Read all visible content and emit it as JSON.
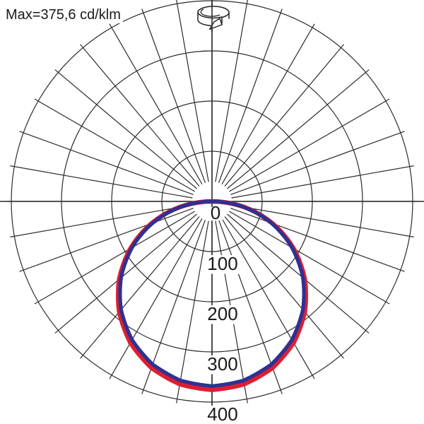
{
  "header": {
    "max_label": "Max=375,6 cd/klm"
  },
  "chart_data": {
    "type": "polar",
    "subtype": "luminous-intensity-distribution",
    "title": "Max=375,6 cd/klm",
    "unit": "cd/klm",
    "max_value": 375.6,
    "radial_axis": {
      "tick_labels": [
        "0",
        "100",
        "200",
        "300",
        "400"
      ],
      "tick_values": [
        0,
        100,
        200,
        300,
        400
      ],
      "range": [
        0,
        400
      ],
      "direction": "downward"
    },
    "angular_grid": {
      "step_deg": 10,
      "full_circle": true
    },
    "grid_color": "#2b2b2b",
    "gamma_deg": [
      0,
      10,
      20,
      30,
      40,
      50,
      60,
      70,
      80,
      90
    ],
    "series": [
      {
        "name": "red-curve",
        "color": "#dc1f32",
        "stroke_width": 6.5,
        "symmetric": true,
        "intensity": [
          375.6,
          369.9,
          353.0,
          325.3,
          287.7,
          241.4,
          187.8,
          128.5,
          65.2,
          0
        ]
      },
      {
        "name": "blue-curve",
        "color": "#2e3192",
        "stroke_width": 5.2,
        "symmetric": true,
        "intensity": [
          368.0,
          362.4,
          345.8,
          318.7,
          281.9,
          236.6,
          184.0,
          125.9,
          63.9,
          0
        ]
      }
    ],
    "legend": "none",
    "icon_label": "rotational-symmetry-luminaire"
  }
}
